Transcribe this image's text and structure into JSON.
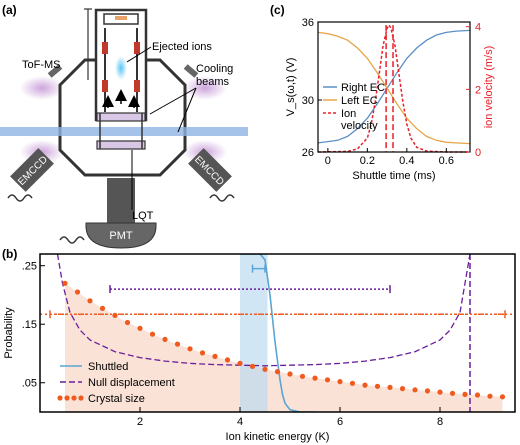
{
  "panel_a": {
    "label": "(a)",
    "tofms_label": "ToF-MS",
    "ejected_ions_label": "Ejected ions",
    "cooling_beams_label": "Cooling\nbeams",
    "emccd_left_label": "EMCCD",
    "emccd_right_label": "EMCCD",
    "pmt_label": "PMT",
    "lqt_label": "LQT"
  },
  "colors": {
    "right_ec": "#5b8fc4",
    "left_ec": "#e6a64a",
    "ion_velocity": "#e8202a",
    "shuttled": "#5aa5d6",
    "shuttled_fill": "#bcdbef",
    "null_displacement": "#6a1e9c",
    "crystal_size": "#f05a1e",
    "crystal_fill": "#fadfd3",
    "cooling_beam": "#8fb4e3",
    "cooling_glow": "#c79ad8"
  },
  "chart_data": [
    {
      "panel": "(c)",
      "type": "line",
      "xlabel": "Shuttle time (ms)",
      "ylabel_left": "V_s(ω,t) (V)",
      "ylabel_right": "ion velocity (m/s)",
      "xlim": [
        -0.05,
        0.72
      ],
      "ylim_left": [
        26,
        36
      ],
      "ylim_right": [
        0,
        4.15
      ],
      "xticks": [
        "0",
        "0.2",
        "0.4",
        "0.6"
      ],
      "xtick_values": [
        0,
        0.2,
        0.4,
        0.6
      ],
      "yticks_left": [
        "26",
        "30",
        "36"
      ],
      "ytick_left_values": [
        26,
        30,
        36
      ],
      "yticks_right": [
        "0",
        "2",
        "4"
      ],
      "ytick_right_values": [
        0,
        2,
        4
      ],
      "legend": [
        "Right EC",
        "Left EC",
        "Ion\nvelocity"
      ],
      "series": [
        {
          "name": "Right EC",
          "axis": "left",
          "x": [
            -0.05,
            0.0,
            0.05,
            0.1,
            0.15,
            0.2,
            0.25,
            0.3,
            0.35,
            0.4,
            0.45,
            0.5,
            0.55,
            0.6,
            0.65,
            0.72
          ],
          "y": [
            26.7,
            26.8,
            26.9,
            27.2,
            27.8,
            28.6,
            29.7,
            30.9,
            32.1,
            33.2,
            34.0,
            34.6,
            35.0,
            35.2,
            35.3,
            35.35
          ]
        },
        {
          "name": "Left EC",
          "axis": "left",
          "x": [
            -0.05,
            0.0,
            0.05,
            0.1,
            0.15,
            0.2,
            0.25,
            0.3,
            0.35,
            0.4,
            0.45,
            0.5,
            0.55,
            0.6,
            0.65,
            0.72
          ],
          "y": [
            35.2,
            35.1,
            34.9,
            34.6,
            34.0,
            33.2,
            32.1,
            30.9,
            29.7,
            28.6,
            27.8,
            27.2,
            26.9,
            26.75,
            26.7,
            26.65
          ]
        },
        {
          "name": "Ion velocity",
          "axis": "right",
          "x": [
            -0.05,
            0.1,
            0.15,
            0.2,
            0.22,
            0.24,
            0.26,
            0.28,
            0.3,
            0.31,
            0.32,
            0.34,
            0.36,
            0.38,
            0.4,
            0.42,
            0.45,
            0.5,
            0.6,
            0.72
          ],
          "y": [
            0,
            0.02,
            0.1,
            0.45,
            0.9,
            1.6,
            2.5,
            3.4,
            3.95,
            4.05,
            3.95,
            3.4,
            2.5,
            1.6,
            0.9,
            0.45,
            0.15,
            0.03,
            0,
            0
          ]
        }
      ],
      "markers_x": [
        0.295,
        0.33
      ]
    },
    {
      "panel": "(b)",
      "type": "line",
      "xlabel": "Ion kinetic energy (K)",
      "ylabel": "Probability",
      "xlim": [
        0,
        9.5
      ],
      "ylim": [
        0,
        0.27
      ],
      "xticks": [
        "2",
        "4",
        "6",
        "8"
      ],
      "xtick_values": [
        2,
        4,
        6,
        8
      ],
      "yticks": [
        ".05",
        ".15",
        ".25"
      ],
      "ytick_values": [
        0.05,
        0.15,
        0.25
      ],
      "legend": [
        "Shuttled",
        "Null displacement",
        "Crystal size"
      ],
      "series": [
        {
          "name": "Shuttled",
          "x": [
            4.0,
            4.1,
            4.2,
            4.3,
            4.4,
            4.5,
            4.6,
            4.7,
            4.8,
            4.85,
            4.9,
            5.0,
            5.2,
            5.5
          ],
          "y": [
            0.27,
            0.27,
            0.27,
            0.27,
            0.27,
            0.26,
            0.2,
            0.12,
            0.055,
            0.03,
            0.015,
            0.004,
            0.0,
            0.0
          ]
        },
        {
          "name": "Null displacement",
          "x": [
            0.35,
            0.45,
            0.6,
            0.8,
            1.0,
            1.5,
            2.0,
            2.5,
            3.0,
            3.5,
            4.0,
            4.5,
            5.0,
            5.5,
            6.0,
            6.5,
            7.0,
            7.5,
            8.0,
            8.2,
            8.4,
            8.5,
            8.6
          ],
          "y": [
            0.27,
            0.22,
            0.17,
            0.14,
            0.123,
            0.103,
            0.093,
            0.087,
            0.083,
            0.081,
            0.08,
            0.079,
            0.08,
            0.081,
            0.083,
            0.087,
            0.093,
            0.103,
            0.123,
            0.14,
            0.17,
            0.22,
            0.27
          ]
        },
        {
          "name": "Crystal size",
          "x": [
            0.5,
            0.75,
            1.0,
            1.25,
            1.5,
            1.75,
            2.0,
            2.25,
            2.5,
            2.75,
            3.0,
            3.25,
            3.5,
            3.75,
            4.0,
            4.25,
            4.5,
            4.75,
            5.0,
            5.25,
            5.5,
            5.75,
            6.0,
            6.25,
            6.5,
            6.75,
            7.0,
            7.25,
            7.5,
            7.75,
            8.0,
            8.25,
            8.5,
            8.75,
            9.0,
            9.25
          ],
          "y": [
            0.22,
            0.205,
            0.19,
            0.177,
            0.165,
            0.153,
            0.143,
            0.133,
            0.124,
            0.116,
            0.108,
            0.101,
            0.095,
            0.089,
            0.083,
            0.078,
            0.073,
            0.069,
            0.065,
            0.061,
            0.058,
            0.055,
            0.052,
            0.049,
            0.046,
            0.044,
            0.042,
            0.04,
            0.038,
            0.036,
            0.034,
            0.032,
            0.03,
            0.029,
            0.027,
            0.026
          ]
        }
      ],
      "shaded_region_x": [
        4.0,
        4.55
      ],
      "vertical_line_x": 8.6,
      "horizontal_line_y": 0.167,
      "errorbars": [
        {
          "name": "Shuttled",
          "x": [
            4.25,
            4.5
          ],
          "y": 0.245
        },
        {
          "name": "Null displacement",
          "x": [
            1.4,
            7.0
          ],
          "y": 0.21
        },
        {
          "name": "Crystal size",
          "x": [
            0.2,
            9.3
          ],
          "y": 0.167
        }
      ]
    }
  ]
}
